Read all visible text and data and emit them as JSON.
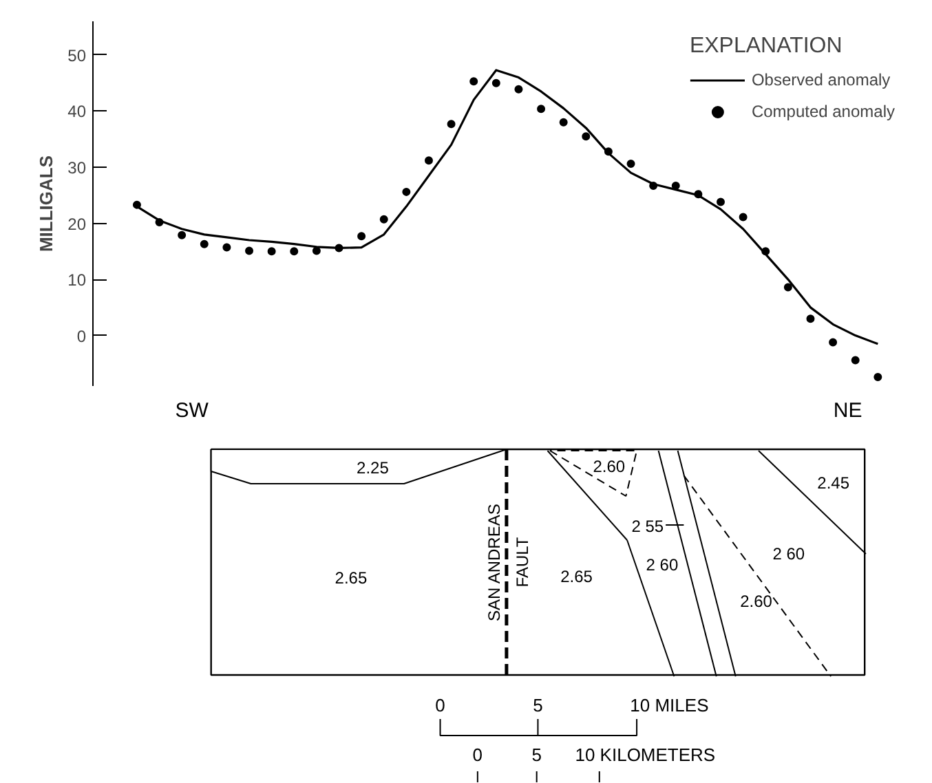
{
  "chart_data": [
    {
      "type": "line",
      "ylabel": "MILLIGALS",
      "legend_title": "EXPLANATION",
      "categories": [
        null,
        null,
        null,
        null,
        null,
        null,
        null,
        null,
        null,
        null,
        null,
        null,
        null,
        null,
        null,
        null,
        null,
        null,
        null,
        null,
        null,
        null,
        null,
        null,
        null,
        null,
        null,
        null,
        null,
        null,
        null,
        null,
        null,
        null
      ],
      "series": [
        {
          "name": "Observed anomaly",
          "type": "line",
          "color": "#000000",
          "line_style": "solid",
          "marker": "none",
          "values": [
            23,
            20.5,
            19,
            18,
            17.5,
            17,
            16.7,
            16.3,
            15.8,
            15.6,
            15.7,
            18,
            23,
            28.5,
            34,
            42,
            47.3,
            46,
            43.5,
            40.5,
            37,
            32.5,
            29,
            27,
            26,
            25,
            22.5,
            19,
            14.5,
            10,
            5,
            2,
            0,
            -1.5
          ]
        },
        {
          "name": "Computed anomaly",
          "type": "scatter",
          "color": "#000000",
          "marker": "circle",
          "values": [
            23.3,
            20.2,
            17.9,
            16.3,
            15.7,
            15.1,
            15,
            15,
            15.1,
            15.6,
            17.7,
            20.7,
            25.6,
            31.2,
            37.7,
            45.3,
            45,
            43.9,
            40.4,
            38,
            35.5,
            32.8,
            30.6,
            26.7,
            26.7,
            25.2,
            23.8,
            21.1,
            15,
            8.6,
            3,
            -1.2,
            -4.4,
            -7.4
          ]
        }
      ],
      "ylim": [
        -9,
        56
      ],
      "yticks": [
        0,
        10,
        20,
        30,
        40,
        50
      ],
      "grid": false,
      "legend": "top right"
    },
    {
      "type": "other",
      "annotations": [
        "SW",
        "NE",
        "2.25",
        "2.65",
        "SAN ANDREAS",
        "FAULT",
        "2.65",
        "2.60",
        "2 55",
        "2 60",
        "2.60",
        "2.45",
        "2 60",
        "0",
        "5",
        "10 MILES",
        "0",
        "5",
        "10 KILOMETERS"
      ]
    }
  ]
}
